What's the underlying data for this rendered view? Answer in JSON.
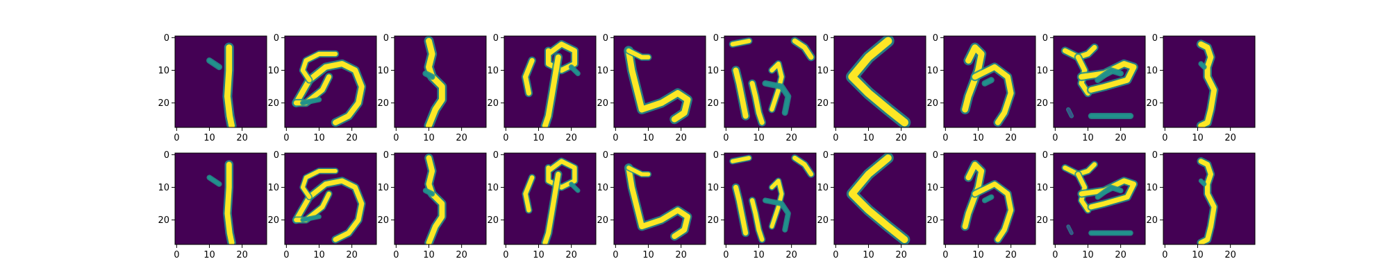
{
  "chart_data": {
    "type": "image-grid",
    "title": "",
    "layout": {
      "rows": 2,
      "cols": 10
    },
    "row_roles": [
      "input",
      "reconstruction"
    ],
    "image_shape": [
      28,
      28
    ],
    "colormap": "viridis",
    "colors": {
      "background": "#440154",
      "stroke": "#fde725",
      "mid": "#21918c",
      "faint": "#3b528b"
    },
    "xlim": [
      -0.5,
      27.5
    ],
    "ylim": [
      27.5,
      -0.5
    ],
    "xticks": [
      0,
      10,
      20
    ],
    "yticks": [
      0,
      10,
      20
    ],
    "xtick_labels": [
      "0",
      "10",
      "20"
    ],
    "ytick_labels": [
      "0",
      "10",
      "20"
    ],
    "panels": [
      {
        "id": "p0",
        "glyph": "vertical-stroke"
      },
      {
        "id": "p1",
        "glyph": "circle-loop"
      },
      {
        "id": "p2",
        "glyph": "s-zigzag"
      },
      {
        "id": "p3",
        "glyph": "loop-with-tail"
      },
      {
        "id": "p4",
        "glyph": "hook-s"
      },
      {
        "id": "p5",
        "glyph": "multi-stroke"
      },
      {
        "id": "p6",
        "glyph": "chevron"
      },
      {
        "id": "p7",
        "glyph": "hook-loop"
      },
      {
        "id": "p8",
        "glyph": "looped-stroke"
      },
      {
        "id": "p9",
        "glyph": "j-curve"
      }
    ]
  }
}
